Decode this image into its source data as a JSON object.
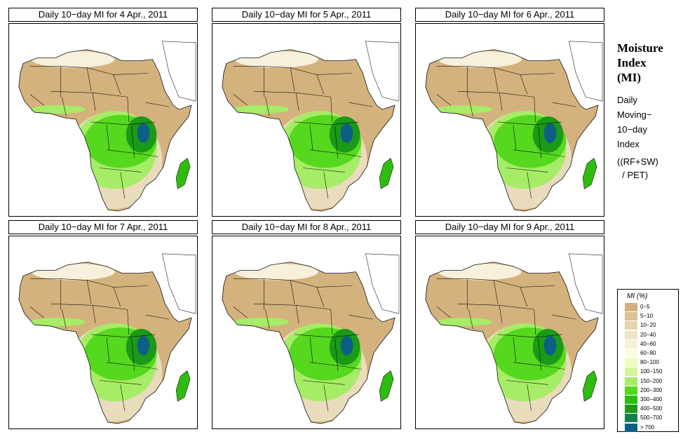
{
  "panels": [
    {
      "title": "Daily 10−day MI for  4 Apr., 2011"
    },
    {
      "title": "Daily 10−day MI for  5 Apr., 2011"
    },
    {
      "title": "Daily 10−day MI for  6 Apr., 2011"
    },
    {
      "title": "Daily 10−day MI for  7 Apr., 2011"
    },
    {
      "title": "Daily 10−day MI for  8 Apr., 2011"
    },
    {
      "title": "Daily 10−day MI for  9 Apr., 2011"
    }
  ],
  "side": {
    "title_lines": [
      "Moisture",
      "Index",
      "(MI)"
    ],
    "desc_lines": [
      "Daily",
      "Moving−",
      "10−day",
      "Index"
    ],
    "formula_lines": [
      "((RF+SW)",
      "  / PET)"
    ]
  },
  "legend": {
    "title": "MI (%)",
    "items": [
      {
        "label": "0−5",
        "color": "#d2b07c"
      },
      {
        "label": "5−10",
        "color": "#dcc195"
      },
      {
        "label": "10−20",
        "color": "#e6d4b0"
      },
      {
        "label": "20−40",
        "color": "#efe3c9"
      },
      {
        "label": "40−60",
        "color": "#f6f0dc"
      },
      {
        "label": "60−80",
        "color": "#fbfce0"
      },
      {
        "label": "80−100",
        "color": "#eefcc0"
      },
      {
        "label": "100−150",
        "color": "#d2f59e"
      },
      {
        "label": "150−200",
        "color": "#a6ec66"
      },
      {
        "label": "200−300",
        "color": "#55d81e"
      },
      {
        "label": "300−400",
        "color": "#2ebd0e"
      },
      {
        "label": "400−500",
        "color": "#1a9a16"
      },
      {
        "label": "500−700",
        "color": "#138046"
      },
      {
        "label": "> 700",
        "color": "#0e5f86"
      }
    ]
  }
}
